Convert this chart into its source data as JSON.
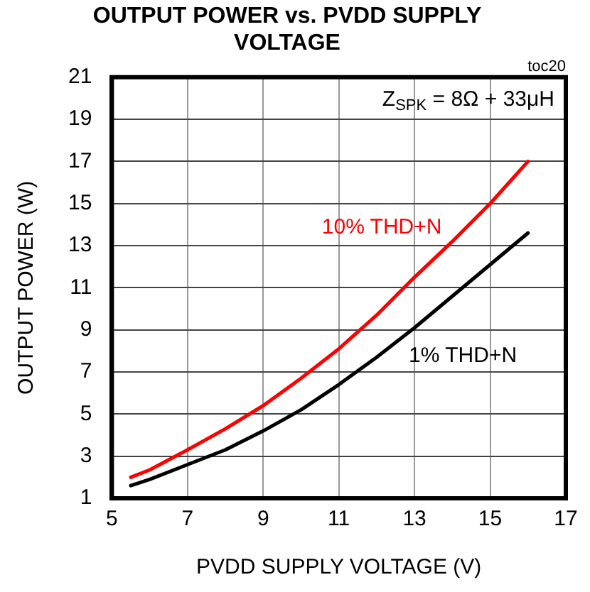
{
  "chart_data": {
    "type": "line",
    "title": "OUTPUT POWER vs. PVDD SUPPLY VOLTAGE",
    "xlabel": "PVDD SUPPLY VOLTAGE (V)",
    "ylabel": "OUTPUT POWER (W)",
    "x": [
      5.5,
      6,
      7,
      8,
      9,
      10,
      11,
      12,
      13,
      14,
      15,
      16
    ],
    "series": [
      {
        "name": "10% THD+N",
        "color": "#ff0000",
        "values": [
          2.0,
          2.35,
          3.3,
          4.3,
          5.4,
          6.7,
          8.1,
          9.7,
          11.5,
          13.2,
          15.0,
          17.0
        ]
      },
      {
        "name": "1% THD+N",
        "color": "#000000",
        "values": [
          1.6,
          1.9,
          2.6,
          3.3,
          4.2,
          5.2,
          6.4,
          7.7,
          9.1,
          10.6,
          12.1,
          13.6
        ]
      }
    ],
    "xlim": [
      5,
      17
    ],
    "xticks": [
      5,
      7,
      9,
      11,
      13,
      15,
      17
    ],
    "ylim": [
      1,
      21
    ],
    "yticks": [
      1,
      3,
      5,
      7,
      9,
      11,
      13,
      15,
      17,
      19,
      21
    ],
    "grid": true,
    "legend": false,
    "marker": "none",
    "line_style": "solid",
    "annotations": [
      "Z$_{SPK}$ = 8Ω + 33μH",
      "toc20"
    ]
  }
}
